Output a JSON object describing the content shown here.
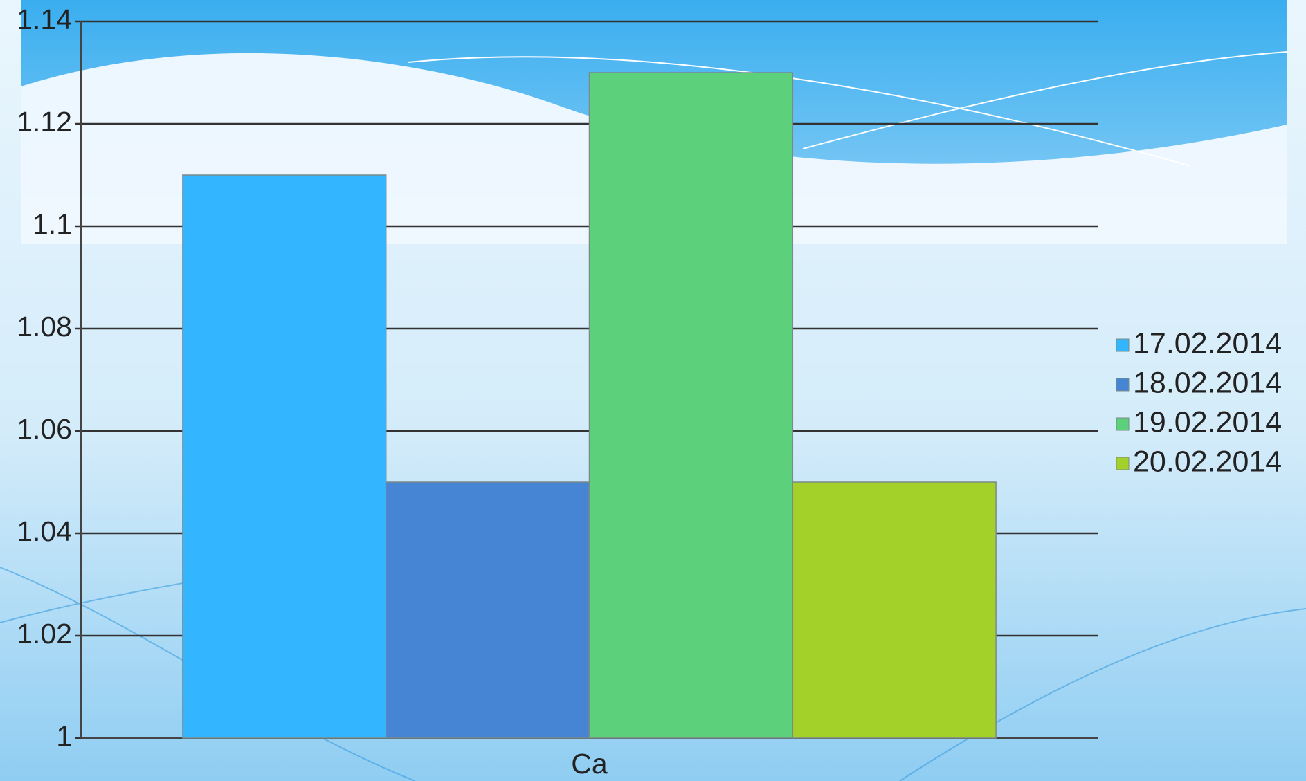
{
  "chart_data": {
    "type": "bar",
    "categories": [
      "Ca"
    ],
    "series": [
      {
        "name": "17.02.2014",
        "color": "#33b5ff",
        "values": [
          1.11
        ]
      },
      {
        "name": "18.02.2014",
        "color": "#4585d4",
        "values": [
          1.05
        ]
      },
      {
        "name": "19.02.2014",
        "color": "#5cd07a",
        "values": [
          1.13
        ]
      },
      {
        "name": "20.02.2014",
        "color": "#a4d02a",
        "values": [
          1.05
        ]
      }
    ],
    "ylim": [
      1,
      1.14
    ],
    "yticks": [
      1,
      1.02,
      1.04,
      1.06,
      1.08,
      1.1,
      1.12,
      1.14
    ],
    "grid": true,
    "legend": "right"
  }
}
